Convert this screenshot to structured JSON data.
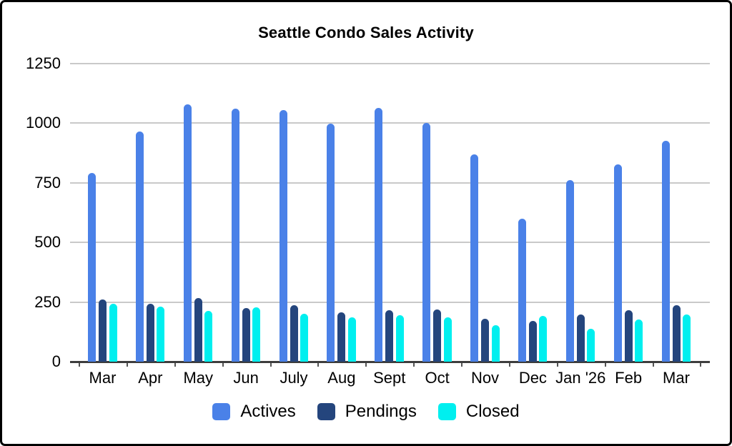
{
  "chart_data": {
    "type": "bar",
    "title": "Seattle Condo Sales Activity",
    "categories": [
      "Mar",
      "Apr",
      "May",
      "Jun",
      "July",
      "Aug",
      "Sept",
      "Oct",
      "Nov",
      "Dec",
      "Jan '26",
      "Feb",
      "Mar"
    ],
    "series": [
      {
        "name": "Actives",
        "color": "#4a81e8",
        "values": [
          790,
          965,
          1078,
          1060,
          1055,
          998,
          1065,
          1000,
          870,
          600,
          760,
          828,
          926
        ]
      },
      {
        "name": "Pendings",
        "color": "#24457d",
        "values": [
          262,
          244,
          268,
          224,
          236,
          206,
          217,
          220,
          179,
          172,
          199,
          217,
          236
        ]
      },
      {
        "name": "Closed",
        "color": "#00efef",
        "values": [
          243,
          231,
          213,
          227,
          202,
          187,
          194,
          187,
          153,
          192,
          137,
          176,
          199
        ]
      }
    ],
    "xlabel": "",
    "ylabel": "",
    "ylim": [
      0,
      1250
    ],
    "yticks": [
      0,
      250,
      500,
      750,
      1000,
      1250
    ],
    "grid": true,
    "legend_position": "bottom"
  },
  "styles": {
    "background": "#ffffff",
    "border_color": "#000000",
    "grid_color": "#c9c9c9",
    "axis_color": "#3d3d3d",
    "text_color": "#000000"
  }
}
